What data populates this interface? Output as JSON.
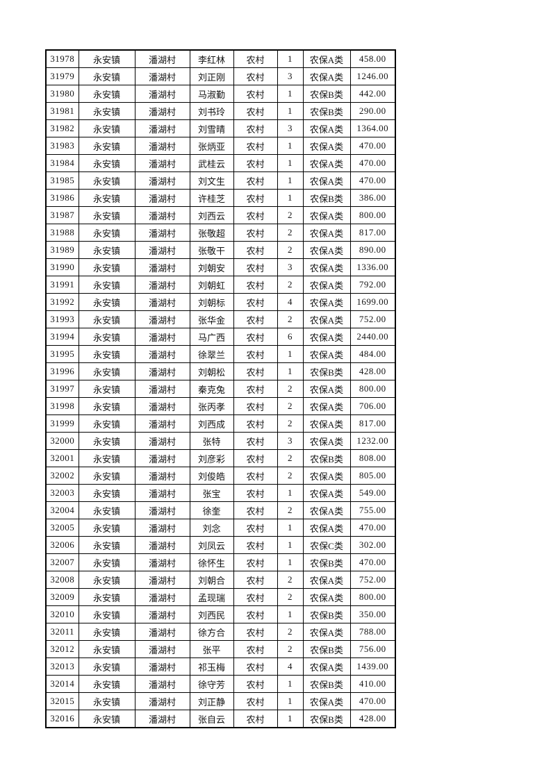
{
  "colors": {
    "page_background": "#ffffff",
    "border": "#000000",
    "text": "#141414"
  },
  "table": {
    "column_keys": [
      "id",
      "town",
      "village",
      "name",
      "residence",
      "count",
      "category",
      "amount"
    ],
    "rows": [
      {
        "id": "31978",
        "town": "永安镇",
        "village": "潘湖村",
        "name": "李红林",
        "residence": "农村",
        "count": "1",
        "category": "农保A类",
        "amount": "458.00"
      },
      {
        "id": "31979",
        "town": "永安镇",
        "village": "潘湖村",
        "name": "刘正刚",
        "residence": "农村",
        "count": "3",
        "category": "农保A类",
        "amount": "1246.00"
      },
      {
        "id": "31980",
        "town": "永安镇",
        "village": "潘湖村",
        "name": "马淑勤",
        "residence": "农村",
        "count": "1",
        "category": "农保B类",
        "amount": "442.00"
      },
      {
        "id": "31981",
        "town": "永安镇",
        "village": "潘湖村",
        "name": "刘书玲",
        "residence": "农村",
        "count": "1",
        "category": "农保B类",
        "amount": "290.00"
      },
      {
        "id": "31982",
        "town": "永安镇",
        "village": "潘湖村",
        "name": "刘雪晴",
        "residence": "农村",
        "count": "3",
        "category": "农保A类",
        "amount": "1364.00"
      },
      {
        "id": "31983",
        "town": "永安镇",
        "village": "潘湖村",
        "name": "张炳亚",
        "residence": "农村",
        "count": "1",
        "category": "农保A类",
        "amount": "470.00"
      },
      {
        "id": "31984",
        "town": "永安镇",
        "village": "潘湖村",
        "name": "武桂云",
        "residence": "农村",
        "count": "1",
        "category": "农保A类",
        "amount": "470.00"
      },
      {
        "id": "31985",
        "town": "永安镇",
        "village": "潘湖村",
        "name": "刘文生",
        "residence": "农村",
        "count": "1",
        "category": "农保A类",
        "amount": "470.00"
      },
      {
        "id": "31986",
        "town": "永安镇",
        "village": "潘湖村",
        "name": "许桂芝",
        "residence": "农村",
        "count": "1",
        "category": "农保B类",
        "amount": "386.00"
      },
      {
        "id": "31987",
        "town": "永安镇",
        "village": "潘湖村",
        "name": "刘西云",
        "residence": "农村",
        "count": "2",
        "category": "农保A类",
        "amount": "800.00"
      },
      {
        "id": "31988",
        "town": "永安镇",
        "village": "潘湖村",
        "name": "张敬超",
        "residence": "农村",
        "count": "2",
        "category": "农保A类",
        "amount": "817.00"
      },
      {
        "id": "31989",
        "town": "永安镇",
        "village": "潘湖村",
        "name": "张敬干",
        "residence": "农村",
        "count": "2",
        "category": "农保A类",
        "amount": "890.00"
      },
      {
        "id": "31990",
        "town": "永安镇",
        "village": "潘湖村",
        "name": "刘朝安",
        "residence": "农村",
        "count": "3",
        "category": "农保A类",
        "amount": "1336.00"
      },
      {
        "id": "31991",
        "town": "永安镇",
        "village": "潘湖村",
        "name": "刘朝虹",
        "residence": "农村",
        "count": "2",
        "category": "农保A类",
        "amount": "792.00"
      },
      {
        "id": "31992",
        "town": "永安镇",
        "village": "潘湖村",
        "name": "刘朝标",
        "residence": "农村",
        "count": "4",
        "category": "农保A类",
        "amount": "1699.00"
      },
      {
        "id": "31993",
        "town": "永安镇",
        "village": "潘湖村",
        "name": "张华金",
        "residence": "农村",
        "count": "2",
        "category": "农保A类",
        "amount": "752.00"
      },
      {
        "id": "31994",
        "town": "永安镇",
        "village": "潘湖村",
        "name": "马广西",
        "residence": "农村",
        "count": "6",
        "category": "农保A类",
        "amount": "2440.00"
      },
      {
        "id": "31995",
        "town": "永安镇",
        "village": "潘湖村",
        "name": "徐翠兰",
        "residence": "农村",
        "count": "1",
        "category": "农保A类",
        "amount": "484.00"
      },
      {
        "id": "31996",
        "town": "永安镇",
        "village": "潘湖村",
        "name": "刘朝松",
        "residence": "农村",
        "count": "1",
        "category": "农保B类",
        "amount": "428.00"
      },
      {
        "id": "31997",
        "town": "永安镇",
        "village": "潘湖村",
        "name": "秦克兔",
        "residence": "农村",
        "count": "2",
        "category": "农保A类",
        "amount": "800.00"
      },
      {
        "id": "31998",
        "town": "永安镇",
        "village": "潘湖村",
        "name": "张丙孝",
        "residence": "农村",
        "count": "2",
        "category": "农保A类",
        "amount": "706.00"
      },
      {
        "id": "31999",
        "town": "永安镇",
        "village": "潘湖村",
        "name": "刘西成",
        "residence": "农村",
        "count": "2",
        "category": "农保A类",
        "amount": "817.00"
      },
      {
        "id": "32000",
        "town": "永安镇",
        "village": "潘湖村",
        "name": "张特",
        "residence": "农村",
        "count": "3",
        "category": "农保A类",
        "amount": "1232.00"
      },
      {
        "id": "32001",
        "town": "永安镇",
        "village": "潘湖村",
        "name": "刘彦彩",
        "residence": "农村",
        "count": "2",
        "category": "农保B类",
        "amount": "808.00"
      },
      {
        "id": "32002",
        "town": "永安镇",
        "village": "潘湖村",
        "name": "刘俊皓",
        "residence": "农村",
        "count": "2",
        "category": "农保A类",
        "amount": "805.00"
      },
      {
        "id": "32003",
        "town": "永安镇",
        "village": "潘湖村",
        "name": "张宝",
        "residence": "农村",
        "count": "1",
        "category": "农保A类",
        "amount": "549.00"
      },
      {
        "id": "32004",
        "town": "永安镇",
        "village": "潘湖村",
        "name": "徐奎",
        "residence": "农村",
        "count": "2",
        "category": "农保A类",
        "amount": "755.00"
      },
      {
        "id": "32005",
        "town": "永安镇",
        "village": "潘湖村",
        "name": "刘念",
        "residence": "农村",
        "count": "1",
        "category": "农保A类",
        "amount": "470.00"
      },
      {
        "id": "32006",
        "town": "永安镇",
        "village": "潘湖村",
        "name": "刘凤云",
        "residence": "农村",
        "count": "1",
        "category": "农保C类",
        "amount": "302.00"
      },
      {
        "id": "32007",
        "town": "永安镇",
        "village": "潘湖村",
        "name": "徐怀生",
        "residence": "农村",
        "count": "1",
        "category": "农保B类",
        "amount": "470.00"
      },
      {
        "id": "32008",
        "town": "永安镇",
        "village": "潘湖村",
        "name": "刘朝合",
        "residence": "农村",
        "count": "2",
        "category": "农保A类",
        "amount": "752.00"
      },
      {
        "id": "32009",
        "town": "永安镇",
        "village": "潘湖村",
        "name": "孟现瑞",
        "residence": "农村",
        "count": "2",
        "category": "农保A类",
        "amount": "800.00"
      },
      {
        "id": "32010",
        "town": "永安镇",
        "village": "潘湖村",
        "name": "刘西民",
        "residence": "农村",
        "count": "1",
        "category": "农保B类",
        "amount": "350.00"
      },
      {
        "id": "32011",
        "town": "永安镇",
        "village": "潘湖村",
        "name": "徐方合",
        "residence": "农村",
        "count": "2",
        "category": "农保A类",
        "amount": "788.00"
      },
      {
        "id": "32012",
        "town": "永安镇",
        "village": "潘湖村",
        "name": "张平",
        "residence": "农村",
        "count": "2",
        "category": "农保B类",
        "amount": "756.00"
      },
      {
        "id": "32013",
        "town": "永安镇",
        "village": "潘湖村",
        "name": "祁玉梅",
        "residence": "农村",
        "count": "4",
        "category": "农保A类",
        "amount": "1439.00"
      },
      {
        "id": "32014",
        "town": "永安镇",
        "village": "潘湖村",
        "name": "徐守芳",
        "residence": "农村",
        "count": "1",
        "category": "农保B类",
        "amount": "410.00"
      },
      {
        "id": "32015",
        "town": "永安镇",
        "village": "潘湖村",
        "name": "刘正静",
        "residence": "农村",
        "count": "1",
        "category": "农保A类",
        "amount": "470.00"
      },
      {
        "id": "32016",
        "town": "永安镇",
        "village": "潘湖村",
        "name": "张自云",
        "residence": "农村",
        "count": "1",
        "category": "农保B类",
        "amount": "428.00"
      }
    ]
  }
}
